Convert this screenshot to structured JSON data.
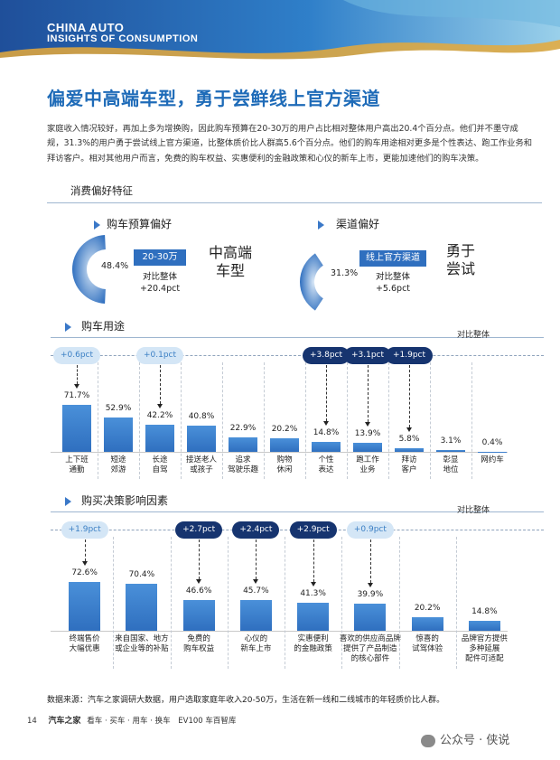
{
  "header": {
    "line1": "CHINA AUTO",
    "line2": "INSIGHTS OF CONSUMPTION"
  },
  "title": "偏爱中高端车型，勇于尝鲜线上官方渠道",
  "intro": "家庭收入情况较好，再加上多为增换购，因此购车预算在20-30万的用户占比相对整体用户高出20.4个百分点。他们并不墨守成规，31.3%的用户勇于尝试线上官方渠道，比整体质价比人群高5.6个百分点。他们的购车用途相对更多是个性表达、跑工作业务和拜访客户。相对其他用户而言，免费的购车权益、实惠便利的金融政策和心仪的新车上市，更能加速他们的购车决策。",
  "section_title": "消费偏好特征",
  "budget": {
    "title": "购车预算偏好",
    "pct": "48.4%",
    "tag": "20-30万",
    "cmp1": "对比整体",
    "cmp2": "+20.4pct",
    "big1": "中高端",
    "big2": "车型",
    "value": 48.4
  },
  "channel": {
    "title": "渠道偏好",
    "pct": "31.3%",
    "tag": "线上官方渠道",
    "cmp1": "对比整体",
    "cmp2": "+5.6pct",
    "big1": "勇于",
    "big2": "尝试",
    "value": 31.3
  },
  "usage": {
    "title": "购车用途",
    "compare_label": "对比整体"
  },
  "factors": {
    "title": "购买决策影响因素",
    "compare_label": "对比整体"
  },
  "chart_data": [
    {
      "type": "bar",
      "title": "购车用途",
      "categories": [
        "上下班\n通勤",
        "短途\n郊游",
        "长途\n自驾",
        "接送老人\n或孩子",
        "追求\n驾驶乐趣",
        "购物\n休闲",
        "个性\n表达",
        "跑工作\n业务",
        "拜访\n客户",
        "彰显\n地位",
        "网约车"
      ],
      "values": [
        71.7,
        52.9,
        42.2,
        40.8,
        22.9,
        20.2,
        14.8,
        13.9,
        5.8,
        3.1,
        0.4
      ],
      "labels": [
        "71.7%",
        "52.9%",
        "42.2%",
        "40.8%",
        "22.9%",
        "20.2%",
        "14.8%",
        "13.9%",
        "5.8%",
        "3.1%",
        "0.4%"
      ],
      "comparisons": [
        {
          "index": 0,
          "text": "+0.6pct",
          "style": "light"
        },
        {
          "index": 2,
          "text": "+0.1pct",
          "style": "light"
        },
        {
          "index": 6,
          "text": "+3.8pct",
          "style": "dark"
        },
        {
          "index": 7,
          "text": "+3.1pct",
          "style": "dark"
        },
        {
          "index": 8,
          "text": "+1.9pct",
          "style": "dark"
        }
      ],
      "ylim": [
        0,
        100
      ]
    },
    {
      "type": "bar",
      "title": "购买决策影响因素",
      "categories": [
        "终端售价\n大幅优惠",
        "来自国家、地方\n或企业等的补贴",
        "免费的\n购车权益",
        "心仪的\n新车上市",
        "实惠便利\n的金融政策",
        "喜欢的供应商品牌\n提供了产品制造\n的核心部件",
        "惊喜的\n试驾体验",
        "品牌官方提供\n多种延展\n配件可适配"
      ],
      "values": [
        72.6,
        70.4,
        46.6,
        45.7,
        41.3,
        39.9,
        20.2,
        14.8
      ],
      "labels": [
        "72.6%",
        "70.4%",
        "46.6%",
        "45.7%",
        "41.3%",
        "39.9%",
        "20.2%",
        "14.8%"
      ],
      "comparisons": [
        {
          "index": 0,
          "text": "+1.9pct",
          "style": "light"
        },
        {
          "index": 2,
          "text": "+2.7pct",
          "style": "dark"
        },
        {
          "index": 3,
          "text": "+2.4pct",
          "style": "dark"
        },
        {
          "index": 4,
          "text": "+2.9pct",
          "style": "dark"
        },
        {
          "index": 5,
          "text": "+0.9pct",
          "style": "light"
        }
      ],
      "ylim": [
        0,
        100
      ]
    }
  ],
  "source": "数据来源：汽车之家调研大数据，用户选取家庭年收入20-50万，生活在新一线和二线城市的年轻质价比人群。",
  "footer": {
    "page": "14",
    "brand": "汽车之家",
    "items": "看车 · 买车 · 用车 · 换车",
    "sub": "EV100 车百智库"
  },
  "watermark": "公众号 · 侠说",
  "colors": {
    "accent": "#1e6bb8",
    "bar": "#2f6fbf",
    "dark_pill": "#16346f",
    "light_pill": "#d4e6f6"
  }
}
